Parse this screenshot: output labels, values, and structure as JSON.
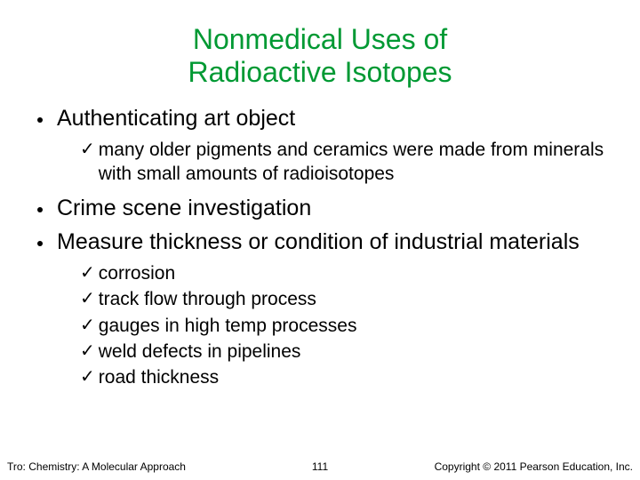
{
  "title_line1": "Nonmedical Uses of",
  "title_line2": "Radioactive Isotopes",
  "title_color": "#009933",
  "bullets": [
    {
      "text": "Authenticating art object",
      "subs": [
        "many older pigments and ceramics were made from minerals with small amounts of radioisotopes"
      ]
    },
    {
      "text": "Crime scene investigation",
      "subs": []
    },
    {
      "text": "Measure thickness or condition of industrial materials",
      "subs": [
        "corrosion",
        "track flow through process",
        "gauges in high temp processes",
        "weld defects in pipelines",
        "road thickness"
      ]
    }
  ],
  "footer_left": "Tro: Chemistry: A Molecular Approach",
  "footer_center": "111",
  "footer_right": "Copyright © 2011 Pearson Education, Inc.",
  "bullet_fontsize": 25,
  "sub_fontsize": 21,
  "footer_fontsize": 12,
  "background_color": "#ffffff",
  "text_color": "#000000"
}
